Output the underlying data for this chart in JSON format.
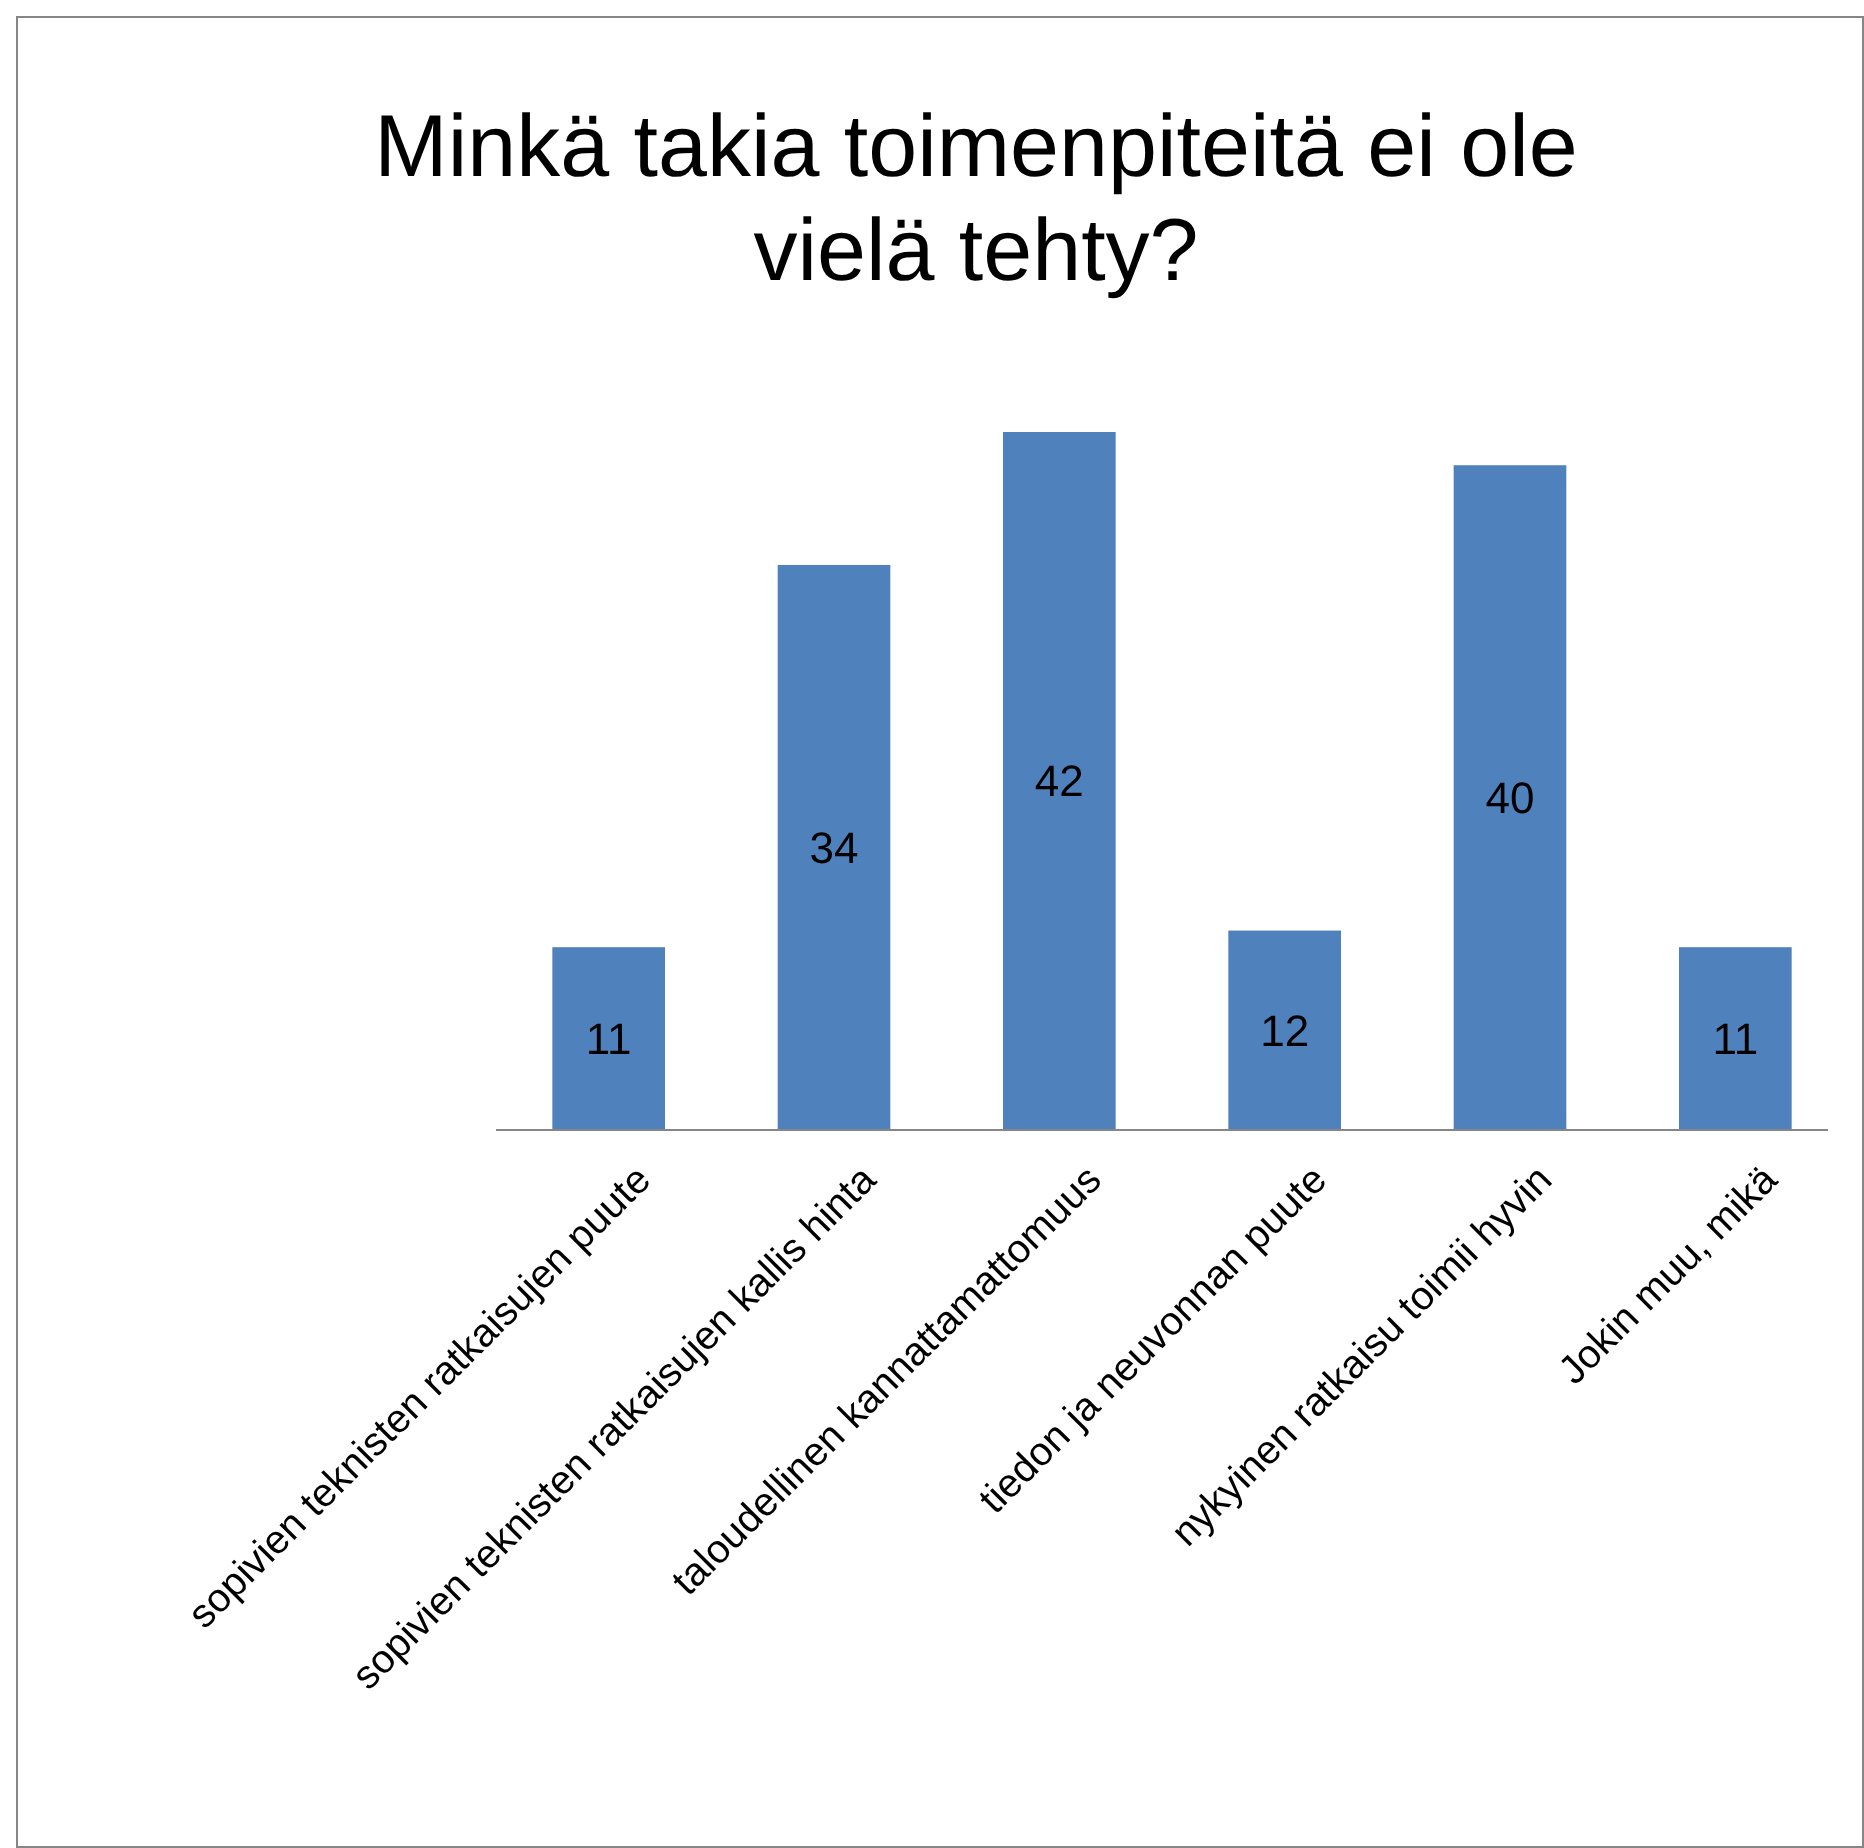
{
  "chart_data": {
    "type": "bar",
    "title": "Minkä takia toimenpiteitä ei ole vielä tehty?",
    "categories": [
      "sopivien teknisten ratkaisujen puute",
      "sopivien teknisten ratkaisujen kallis hinta",
      "taloudellinen kannattamattomuus",
      "tiedon ja neuvonnan puute",
      "nykyinen ratkaisu toimii hyvin",
      "Jokin muu, mikä"
    ],
    "values": [
      11,
      34,
      42,
      12,
      40,
      11
    ],
    "color": "#4f81bd",
    "data_labels": true
  }
}
